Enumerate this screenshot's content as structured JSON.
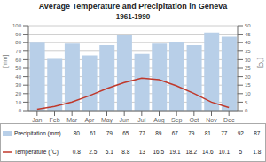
{
  "chart_data": {
    "type": "bar",
    "title": "Average Temperature and Precipitation in Geneva",
    "subtitle": "1961-1990",
    "categories": [
      "Jan",
      "Feb",
      "Mar",
      "Apr",
      "May",
      "Jun",
      "Jul",
      "Aug",
      "Sep",
      "Oct",
      "Nov",
      "Dec"
    ],
    "series": [
      {
        "name": "Precipitation (mm)",
        "type": "bar",
        "color": "#b8cfe8",
        "values": [
          80,
          61,
          79,
          65,
          77,
          89,
          67,
          79,
          81,
          77,
          92,
          87
        ]
      },
      {
        "name": "Temperature (°C)",
        "type": "line",
        "color": "#c0392b",
        "axis": "y2",
        "values": [
          0.8,
          2.5,
          5.1,
          8.8,
          13,
          16.5,
          19.1,
          18.2,
          14.6,
          10.1,
          5,
          1.8
        ]
      }
    ],
    "ylabel": "[mm]",
    "y2label": "[°C]",
    "ylim": [
      0,
      100
    ],
    "yticks": [
      0,
      10,
      20,
      30,
      40,
      50,
      60,
      70,
      80,
      90,
      100
    ],
    "y2lim": [
      0,
      50
    ],
    "y2ticks": [
      0,
      5,
      10,
      15,
      20,
      25,
      30,
      35,
      40,
      45,
      50
    ],
    "grid": true,
    "legend": "bottom",
    "data_labels": true
  }
}
